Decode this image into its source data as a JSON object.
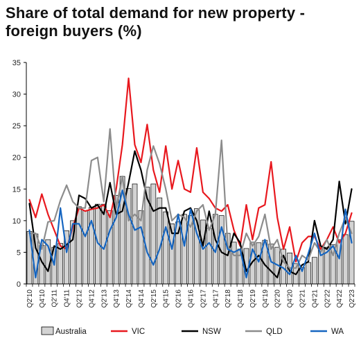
{
  "chart_data": {
    "type": "bar+line",
    "title": "Share of total demand for new property - foreign buyers (%)",
    "ylabel": "",
    "ylim": [
      0,
      35
    ],
    "yticks": [
      0,
      5,
      10,
      15,
      20,
      25,
      30,
      35
    ],
    "x": [
      "Q2'10",
      "Q3'10",
      "Q4'10",
      "Q1'11",
      "Q2'11",
      "Q3'11",
      "Q4'11",
      "Q1'12",
      "Q2'12",
      "Q3'12",
      "Q4'12",
      "Q1'13",
      "Q2'13",
      "Q3'13",
      "Q4'13",
      "Q1'14",
      "Q2'14",
      "Q3'14",
      "Q4'14",
      "Q1'15",
      "Q2'15",
      "Q3'15",
      "Q4'15",
      "Q1'16",
      "Q2'16",
      "Q3'16",
      "Q4'16",
      "Q1'17",
      "Q2'17",
      "Q3'17",
      "Q4'17",
      "Q1'18",
      "Q2'18",
      "Q3'18",
      "Q4'18",
      "Q1'19",
      "Q2'19",
      "Q3'19",
      "Q4'19",
      "Q1'20",
      "Q2'20",
      "Q3'20",
      "Q4'20",
      "Q1'21",
      "Q2'21",
      "Q3'21",
      "Q4'21",
      "Q1'22",
      "Q2'22",
      "Q3'22",
      "Q4'22",
      "Q1'23",
      "Q2'23"
    ],
    "x_tick_labels": [
      "Q2'10",
      "Q4'10",
      "Q2'11",
      "Q4'11",
      "Q2'12",
      "Q4'12",
      "Q2'13",
      "Q4'13",
      "Q2'14",
      "Q4'14",
      "Q2'15",
      "Q4'15",
      "Q2'16",
      "Q4'16",
      "Q2'17",
      "Q4'17",
      "Q2'18",
      "Q4'18",
      "Q2'19",
      "Q4'19",
      "Q2'20",
      "Q4'20",
      "Q2'21",
      "Q4'21",
      "Q2'22",
      "Q4'22",
      "Q2'23"
    ],
    "legend_position": "bottom",
    "grid": false,
    "series": [
      {
        "name": "Australia",
        "kind": "bar",
        "color": "#d3d3d3",
        "values": [
          8.3,
          7.9,
          6.1,
          7.0,
          5.8,
          6.4,
          8.4,
          10.0,
          12.2,
          11.6,
          12.1,
          12.6,
          12.6,
          11.6,
          14.0,
          17.0,
          15.1,
          15.8,
          11.6,
          15.3,
          15.8,
          13.6,
          11.4,
          9.5,
          9.8,
          11.0,
          10.8,
          11.9,
          10.1,
          8.8,
          11.0,
          10.8,
          8.0,
          6.6,
          5.5,
          5.6,
          6.6,
          6.5,
          6.9,
          6.3,
          5.8,
          5.5,
          4.9,
          3.2,
          2.6,
          3.4,
          4.2,
          5.6,
          5.8,
          6.2,
          7.0,
          7.8,
          9.9
        ]
      },
      {
        "name": "VIC",
        "kind": "line",
        "color": "#e8181e",
        "values": [
          13.3,
          10.5,
          14.2,
          11.0,
          8.5,
          6.0,
          5.5,
          9.0,
          12.0,
          11.5,
          11.8,
          12.0,
          12.5,
          10.5,
          15.0,
          22.0,
          32.5,
          22.0,
          19.2,
          25.2,
          18.0,
          14.5,
          21.8,
          15.0,
          19.5,
          15.0,
          14.5,
          21.5,
          14.5,
          13.5,
          12.0,
          11.5,
          12.5,
          8.5,
          6.0,
          12.5,
          7.0,
          12.0,
          12.5,
          19.3,
          10.5,
          5.5,
          9.0,
          3.5,
          6.5,
          7.5,
          7.5,
          5.5,
          7.0,
          9.0,
          6.5,
          8.0,
          11.2
        ]
      },
      {
        "name": "NSW",
        "kind": "line",
        "color": "#000000",
        "values": [
          12.7,
          5.7,
          3.5,
          2.0,
          6.0,
          5.5,
          6.2,
          7.0,
          14.0,
          13.5,
          12.0,
          12.5,
          11.0,
          16.0,
          11.0,
          11.5,
          16.0,
          21.0,
          18.0,
          13.5,
          11.5,
          12.0,
          12.0,
          8.0,
          8.0,
          11.5,
          12.0,
          10.0,
          6.0,
          11.5,
          7.0,
          5.0,
          4.5,
          8.0,
          6.5,
          2.0,
          3.5,
          4.5,
          3.0,
          2.0,
          1.0,
          4.5,
          2.0,
          1.5,
          3.0,
          3.5,
          10.0,
          6.0,
          5.5,
          7.0,
          16.2,
          9.5,
          15.0
        ]
      },
      {
        "name": "QLD",
        "kind": "line",
        "color": "#8c8c8c",
        "values": [
          8.0,
          8.0,
          5.5,
          9.8,
          10.0,
          13.2,
          15.6,
          13.0,
          12.0,
          12.0,
          19.5,
          20.0,
          13.0,
          24.5,
          12.0,
          17.0,
          10.0,
          11.0,
          10.0,
          18.0,
          21.8,
          19.0,
          15.0,
          10.0,
          11.0,
          10.5,
          9.0,
          11.5,
          12.5,
          8.5,
          11.0,
          22.7,
          6.0,
          4.5,
          4.5,
          8.0,
          6.0,
          7.5,
          11.0,
          5.5,
          7.0,
          3.5,
          2.5,
          2.5,
          4.5,
          3.8,
          6.5,
          5.0,
          7.0,
          4.5,
          8.0,
          10.5,
          8.0
        ]
      },
      {
        "name": "WA",
        "kind": "line",
        "color": "#1565c0",
        "values": [
          8.5,
          1.0,
          7.0,
          6.0,
          3.0,
          12.0,
          5.0,
          9.5,
          9.5,
          7.5,
          10.0,
          6.5,
          5.5,
          8.5,
          10.5,
          14.8,
          11.0,
          8.5,
          9.0,
          5.0,
          3.0,
          5.5,
          9.0,
          5.5,
          11.0,
          6.0,
          11.8,
          8.0,
          5.5,
          6.5,
          5.0,
          9.0,
          5.5,
          5.0,
          5.5,
          1.0,
          5.5,
          3.5,
          7.0,
          3.5,
          3.0,
          2.5,
          1.5,
          4.5,
          2.0,
          4.8,
          8.0,
          4.5,
          5.0,
          6.0,
          4.0,
          11.8,
          6.5
        ]
      }
    ]
  }
}
